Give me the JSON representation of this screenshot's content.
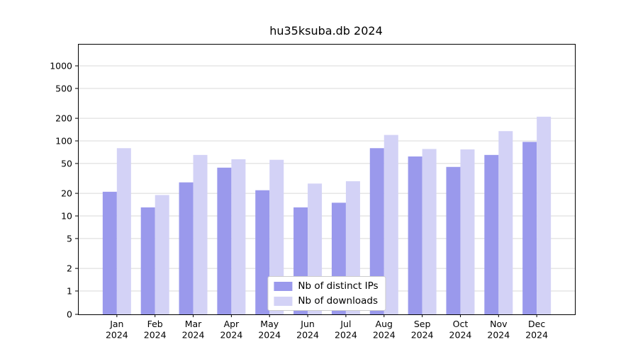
{
  "title": "hu35ksuba.db 2024",
  "colors": {
    "ips": "#9a99ec",
    "downloads": "#d3d2f6",
    "grid": "#d9d9d9",
    "axis": "#000000"
  },
  "chart_data": {
    "type": "bar",
    "title": "hu35ksuba.db 2024",
    "yscale": "log",
    "grid": "horizontal",
    "legend_position": "lower center",
    "yticks": [
      0,
      1,
      2,
      5,
      10,
      20,
      50,
      100,
      200,
      500,
      1000
    ],
    "ylim": [
      0,
      1000
    ],
    "categories": [
      "Jan 2024",
      "Feb 2024",
      "Mar 2024",
      "Apr 2024",
      "May 2024",
      "Jun 2024",
      "Jul 2024",
      "Aug 2024",
      "Sep 2024",
      "Oct 2024",
      "Nov 2024",
      "Dec 2024"
    ],
    "series": [
      {
        "name": "Nb of distinct IPs",
        "values": [
          21,
          13,
          28,
          44,
          22,
          13,
          15,
          80,
          62,
          45,
          65,
          97
        ]
      },
      {
        "name": "Nb of downloads",
        "values": [
          80,
          19,
          65,
          57,
          56,
          27,
          29,
          120,
          78,
          77,
          135,
          210
        ]
      }
    ]
  }
}
